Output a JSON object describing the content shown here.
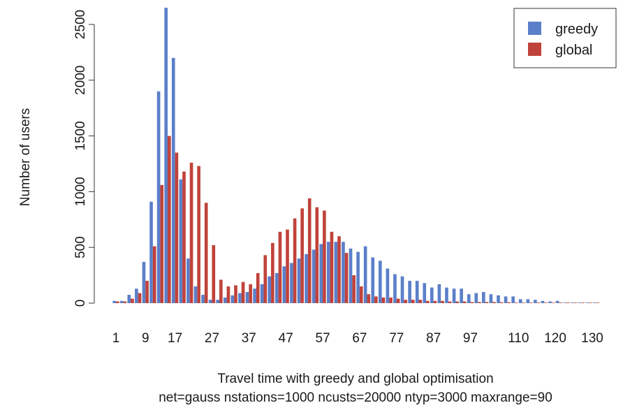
{
  "chart_data": {
    "type": "bar",
    "xlabel": "Travel time with greedy and global optimisation",
    "subtitle": "net=gauss nstations=1000 ncusts=20000 ntyp=3000 maxrange=90",
    "ylabel": "Number of users",
    "ylim": [
      0,
      2600
    ],
    "yticks": [
      "0",
      "500",
      "1000",
      "1500",
      "2000",
      "2500"
    ],
    "ytick_values": [
      0,
      500,
      1000,
      1500,
      2000,
      2500
    ],
    "xticks": [
      "1",
      "9",
      "17",
      "27",
      "37",
      "47",
      "57",
      "67",
      "77",
      "87",
      "97",
      "110",
      "120",
      "130"
    ],
    "xtick_values": [
      1,
      9,
      17,
      27,
      37,
      47,
      57,
      67,
      77,
      87,
      97,
      110,
      120,
      130
    ],
    "legend_position": "top-right",
    "x": [
      1,
      3,
      5,
      7,
      9,
      11,
      13,
      15,
      17,
      19,
      21,
      23,
      25,
      27,
      29,
      31,
      33,
      35,
      37,
      39,
      41,
      43,
      45,
      47,
      49,
      51,
      53,
      55,
      57,
      59,
      61,
      63,
      65,
      67,
      69,
      71,
      73,
      75,
      77,
      79,
      81,
      83,
      85,
      87,
      89,
      91,
      93,
      95,
      97,
      99,
      101,
      103,
      105,
      107,
      109,
      111,
      113,
      115,
      117,
      119,
      121,
      123,
      125,
      127,
      129,
      131
    ],
    "series": [
      {
        "name": "greedy",
        "color": "#5b7fc9",
        "values": [
          20,
          20,
          75,
          130,
          370,
          910,
          1900,
          2650,
          2200,
          1110,
          400,
          150,
          75,
          30,
          30,
          50,
          70,
          90,
          100,
          130,
          170,
          240,
          270,
          330,
          360,
          400,
          440,
          480,
          530,
          550,
          550,
          550,
          490,
          460,
          510,
          410,
          380,
          310,
          260,
          240,
          200,
          200,
          180,
          140,
          170,
          140,
          130,
          130,
          80,
          90,
          100,
          80,
          70,
          60,
          60,
          35,
          35,
          30,
          20,
          15,
          20,
          5,
          5,
          5,
          5,
          5
        ],
        "values_note": ""
      },
      {
        "name": "global",
        "color": "#c0433b",
        "values": [
          15,
          15,
          40,
          90,
          200,
          510,
          1060,
          1500,
          1350,
          1180,
          1260,
          1230,
          900,
          520,
          210,
          150,
          160,
          190,
          170,
          270,
          430,
          540,
          640,
          660,
          760,
          850,
          940,
          860,
          830,
          640,
          600,
          450,
          250,
          150,
          80,
          60,
          50,
          50,
          40,
          30,
          30,
          30,
          20,
          20,
          20,
          15,
          15,
          15,
          10,
          10,
          10,
          10,
          8,
          8,
          5,
          5,
          5,
          5,
          5,
          5,
          5,
          5,
          5,
          5,
          5,
          5
        ]
      }
    ]
  }
}
